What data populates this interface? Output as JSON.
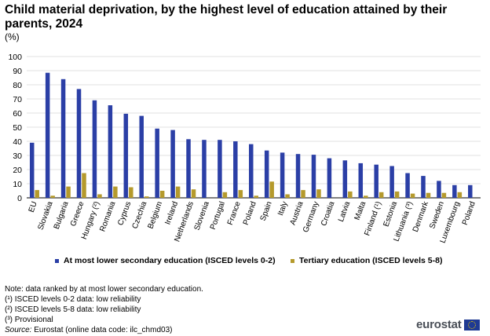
{
  "title": "Child material deprivation, by the highest level of education attained by their parents, 2024",
  "unit": "(%)",
  "chart_data": {
    "type": "bar",
    "title": "Child material deprivation, by the highest level of education attained by their parents, 2024",
    "ylabel": "(%)",
    "ylim": [
      0,
      100
    ],
    "yticks": [
      0,
      10,
      20,
      30,
      40,
      50,
      60,
      70,
      80,
      90,
      100
    ],
    "grid": true,
    "legend": "bottom",
    "categories": [
      "EU",
      "Slovakia",
      "Bulgaria",
      "Greece",
      "Hungary (²)",
      "Romania",
      "Cyprus",
      "Czechia",
      "Belgium",
      "Ireland",
      "Netherlands",
      "Slovenia",
      "Portugal",
      "France",
      "Poland",
      "Spain",
      "Italy",
      "Austria",
      "Germany",
      "Croatia",
      "Latvia",
      "Malta",
      "Finland (¹)",
      "Estonia",
      "Lithuania (³)",
      "Denmark",
      "Sweden",
      "Luxembourg",
      "Poland"
    ],
    "series": [
      {
        "name": "At most lower secondary education (ISCED levels 0-2)",
        "color": "#2b3fa6",
        "values": [
          39.0,
          88.5,
          84.0,
          77.0,
          69.0,
          65.5,
          59.5,
          58.0,
          49.0,
          48.0,
          41.5,
          41.0,
          41.0,
          40.0,
          38.0,
          33.5,
          32.0,
          31.0,
          30.5,
          28.0,
          26.5,
          24.5,
          23.5,
          22.5,
          17.5,
          15.5,
          12.0,
          9.0,
          9.0
        ]
      },
      {
        "name": "Tertiary education (ISCED levels 5-8)",
        "color": "#b59a2c",
        "values": [
          5.5,
          1.5,
          8.0,
          17.5,
          2.5,
          8.0,
          7.5,
          1.0,
          5.0,
          8.0,
          6.0,
          0.0,
          4.0,
          5.5,
          1.5,
          11.5,
          2.5,
          5.5,
          6.0,
          0.0,
          4.5,
          1.5,
          4.0,
          4.5,
          3.0,
          3.5,
          3.5,
          4.0,
          0.0
        ]
      }
    ]
  },
  "notes": [
    "Note: data ranked by at most lower secondary education.",
    "(¹) ISCED levels 0-2 data: low reliability",
    "(²) ISCED levels 5-8 data: low reliability",
    "(³) Provisional"
  ],
  "source": {
    "label": "Source:",
    "text": " Eurostat (online data code: ilc_chmd03)"
  },
  "logo": "eurostat"
}
